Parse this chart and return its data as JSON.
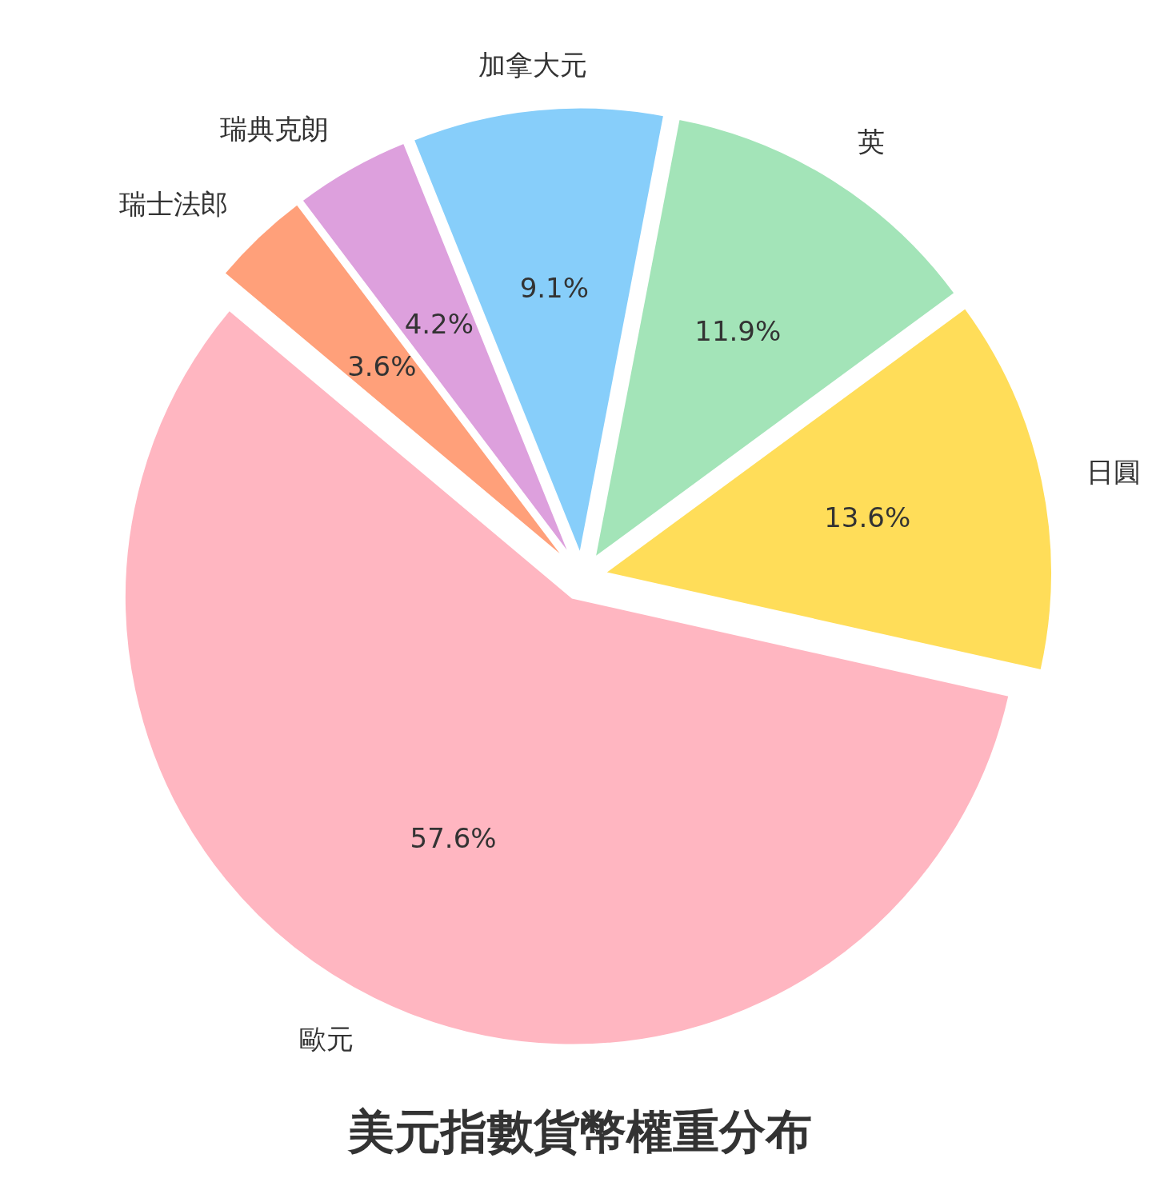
{
  "chart_data": {
    "type": "pie",
    "title": "美元指數貨幣權重分布",
    "categories": [
      "歐元",
      "日圓",
      "英",
      "加拿大元",
      "瑞典克朗",
      "瑞士法郎"
    ],
    "values": [
      57.6,
      13.6,
      11.9,
      9.1,
      4.2,
      3.6
    ],
    "colors": [
      "#ffb6c1",
      "#ffdd59",
      "#a3e4b8",
      "#87cefa",
      "#dda0dd",
      "#ffa07a"
    ],
    "value_labels": [
      "57.6%",
      "13.6%",
      "11.9%",
      "9.1%",
      "4.2%",
      "3.6%"
    ]
  }
}
